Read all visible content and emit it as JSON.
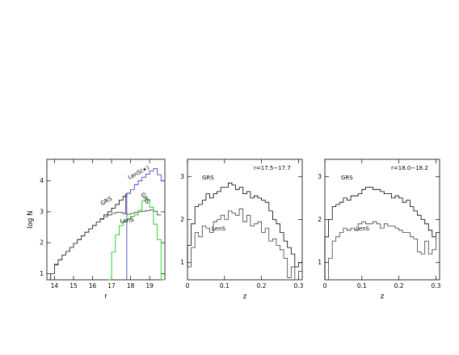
{
  "chart_data": [
    {
      "type": "line",
      "xlabel": "r",
      "ylabel": "log N",
      "xlim": [
        13.6,
        19.8
      ],
      "ylim": [
        0.8,
        4.7
      ],
      "xticks": [
        "14",
        "15",
        "16",
        "17",
        "18",
        "19"
      ],
      "yticks": [
        "1",
        "2",
        "3",
        "4"
      ],
      "annotations": [
        "GRS",
        "LenS",
        "GRS",
        "LenS(∗)"
      ],
      "series": [
        {
          "name": "GRS",
          "color": "#000000",
          "x": [
            13.8,
            14.0,
            14.2,
            14.4,
            14.6,
            14.8,
            15.0,
            15.2,
            15.4,
            15.6,
            15.8,
            16.0,
            16.2,
            16.4,
            16.6,
            16.8,
            17.0,
            17.2,
            17.4,
            17.6,
            17.8
          ],
          "y": [
            1.0,
            1.3,
            1.45,
            1.6,
            1.72,
            1.85,
            1.98,
            2.1,
            2.22,
            2.34,
            2.45,
            2.56,
            2.67,
            2.78,
            2.9,
            3.0,
            3.12,
            3.24,
            3.38,
            3.5,
            3.6
          ]
        },
        {
          "name": "LenS(∗)",
          "color": "#3030c8",
          "x": [
            17.8,
            18.0,
            18.2,
            18.4,
            18.6,
            18.8,
            19.0,
            19.2,
            19.4,
            19.6
          ],
          "y": [
            3.6,
            3.72,
            3.88,
            4.0,
            4.12,
            4.22,
            4.32,
            4.4,
            4.2,
            4.0
          ]
        },
        {
          "name": "LenS",
          "color": "#3c3c3c",
          "x": [
            13.8,
            14.0,
            14.2,
            14.4,
            14.6,
            14.8,
            15.0,
            15.2,
            15.4,
            15.6,
            15.8,
            16.0,
            16.2,
            16.4,
            16.6,
            16.8,
            17.0,
            17.2,
            17.4,
            17.6,
            17.8,
            18.0,
            18.2,
            18.4,
            18.6,
            18.8,
            19.0,
            19.2,
            19.4
          ],
          "y": [
            1.0,
            1.28,
            1.45,
            1.6,
            1.72,
            1.85,
            1.98,
            2.1,
            2.22,
            2.34,
            2.45,
            2.56,
            2.67,
            2.76,
            2.84,
            2.9,
            2.95,
            2.98,
            2.98,
            2.94,
            2.92,
            2.95,
            2.98,
            3.0,
            3.02,
            3.04,
            3.06,
            3.02,
            2.9
          ]
        },
        {
          "name": "GRS",
          "color": "#00c800",
          "x": [
            16.8,
            17.0,
            17.2,
            17.4,
            17.6,
            17.8,
            18.0,
            18.2,
            18.4,
            18.6,
            18.8,
            19.0,
            19.2,
            19.4,
            19.6
          ],
          "y": [
            0.8,
            1.7,
            2.25,
            2.55,
            2.7,
            2.78,
            2.85,
            2.9,
            3.05,
            3.35,
            3.4,
            3.15,
            2.6,
            2.1,
            0.8
          ]
        }
      ]
    },
    {
      "type": "line",
      "xlabel": "z",
      "ylabel": "",
      "xlim": [
        0,
        0.31
      ],
      "ylim": [
        0.6,
        3.4
      ],
      "xticks": [
        "0",
        "0.1",
        "0.2",
        "0.3"
      ],
      "yticks": [
        "1",
        "2",
        "3"
      ],
      "annotations": [
        "r=17.5−17.7",
        "GRS",
        "LenS"
      ],
      "series": [
        {
          "name": "GRS",
          "x": [
            0.0,
            0.01,
            0.02,
            0.03,
            0.04,
            0.05,
            0.06,
            0.07,
            0.08,
            0.09,
            0.1,
            0.11,
            0.12,
            0.13,
            0.14,
            0.15,
            0.16,
            0.17,
            0.18,
            0.19,
            0.2,
            0.21,
            0.22,
            0.23,
            0.24,
            0.25,
            0.26,
            0.27,
            0.28,
            0.29,
            0.3
          ],
          "y": [
            1.4,
            1.9,
            2.3,
            2.35,
            2.45,
            2.6,
            2.5,
            2.6,
            2.65,
            2.75,
            2.75,
            2.85,
            2.8,
            2.7,
            2.75,
            2.6,
            2.65,
            2.5,
            2.55,
            2.5,
            2.45,
            2.4,
            2.2,
            2.0,
            1.9,
            1.7,
            1.5,
            1.35,
            1.2,
            0.9,
            1.0
          ]
        },
        {
          "name": "LenS",
          "x": [
            0.0,
            0.01,
            0.02,
            0.03,
            0.04,
            0.05,
            0.06,
            0.07,
            0.08,
            0.09,
            0.1,
            0.11,
            0.12,
            0.13,
            0.14,
            0.15,
            0.16,
            0.17,
            0.18,
            0.19,
            0.2,
            0.21,
            0.22,
            0.23,
            0.24,
            0.25,
            0.26,
            0.27,
            0.28,
            0.29,
            0.3
          ],
          "y": [
            0.9,
            1.35,
            1.7,
            1.6,
            1.85,
            1.8,
            1.7,
            1.95,
            2.0,
            2.1,
            2.0,
            2.2,
            2.15,
            2.1,
            2.25,
            1.95,
            2.1,
            1.85,
            1.9,
            1.95,
            1.7,
            1.8,
            1.5,
            1.55,
            1.4,
            1.3,
            1.1,
            0.65,
            0.9,
            0.6,
            0.8
          ]
        }
      ]
    },
    {
      "type": "line",
      "xlabel": "z",
      "ylabel": "",
      "xlim": [
        0,
        0.31
      ],
      "ylim": [
        0.6,
        3.4
      ],
      "xticks": [
        "0",
        "0.1",
        "0.2",
        "0.3"
      ],
      "yticks": [
        "1",
        "2",
        "3"
      ],
      "annotations": [
        "r=18.0−18.2",
        "GRS",
        "LenS"
      ],
      "series": [
        {
          "name": "GRS",
          "x": [
            0.0,
            0.01,
            0.02,
            0.03,
            0.04,
            0.05,
            0.06,
            0.07,
            0.08,
            0.09,
            0.1,
            0.11,
            0.12,
            0.13,
            0.14,
            0.15,
            0.16,
            0.17,
            0.18,
            0.19,
            0.2,
            0.21,
            0.22,
            0.23,
            0.24,
            0.25,
            0.26,
            0.27,
            0.28,
            0.29,
            0.3
          ],
          "y": [
            1.6,
            2.0,
            2.3,
            2.35,
            2.4,
            2.5,
            2.45,
            2.55,
            2.55,
            2.6,
            2.7,
            2.75,
            2.75,
            2.7,
            2.7,
            2.65,
            2.6,
            2.6,
            2.5,
            2.55,
            2.5,
            2.4,
            2.45,
            2.3,
            2.2,
            2.1,
            2.0,
            1.9,
            1.75,
            1.6,
            1.7
          ]
        },
        {
          "name": "LenS",
          "x": [
            0.0,
            0.01,
            0.02,
            0.03,
            0.04,
            0.05,
            0.06,
            0.07,
            0.08,
            0.09,
            0.1,
            0.11,
            0.12,
            0.13,
            0.14,
            0.15,
            0.16,
            0.17,
            0.18,
            0.19,
            0.2,
            0.21,
            0.22,
            0.23,
            0.24,
            0.25,
            0.26,
            0.27,
            0.28,
            0.29,
            0.3
          ],
          "y": [
            0.6,
            1.1,
            1.5,
            1.6,
            1.7,
            1.8,
            1.75,
            1.8,
            1.75,
            1.9,
            1.95,
            1.9,
            1.9,
            1.95,
            1.9,
            1.8,
            1.9,
            1.85,
            1.85,
            1.8,
            1.75,
            1.7,
            1.7,
            1.6,
            1.55,
            1.25,
            1.2,
            1.5,
            1.2,
            1.3,
            1.7
          ]
        }
      ]
    }
  ]
}
